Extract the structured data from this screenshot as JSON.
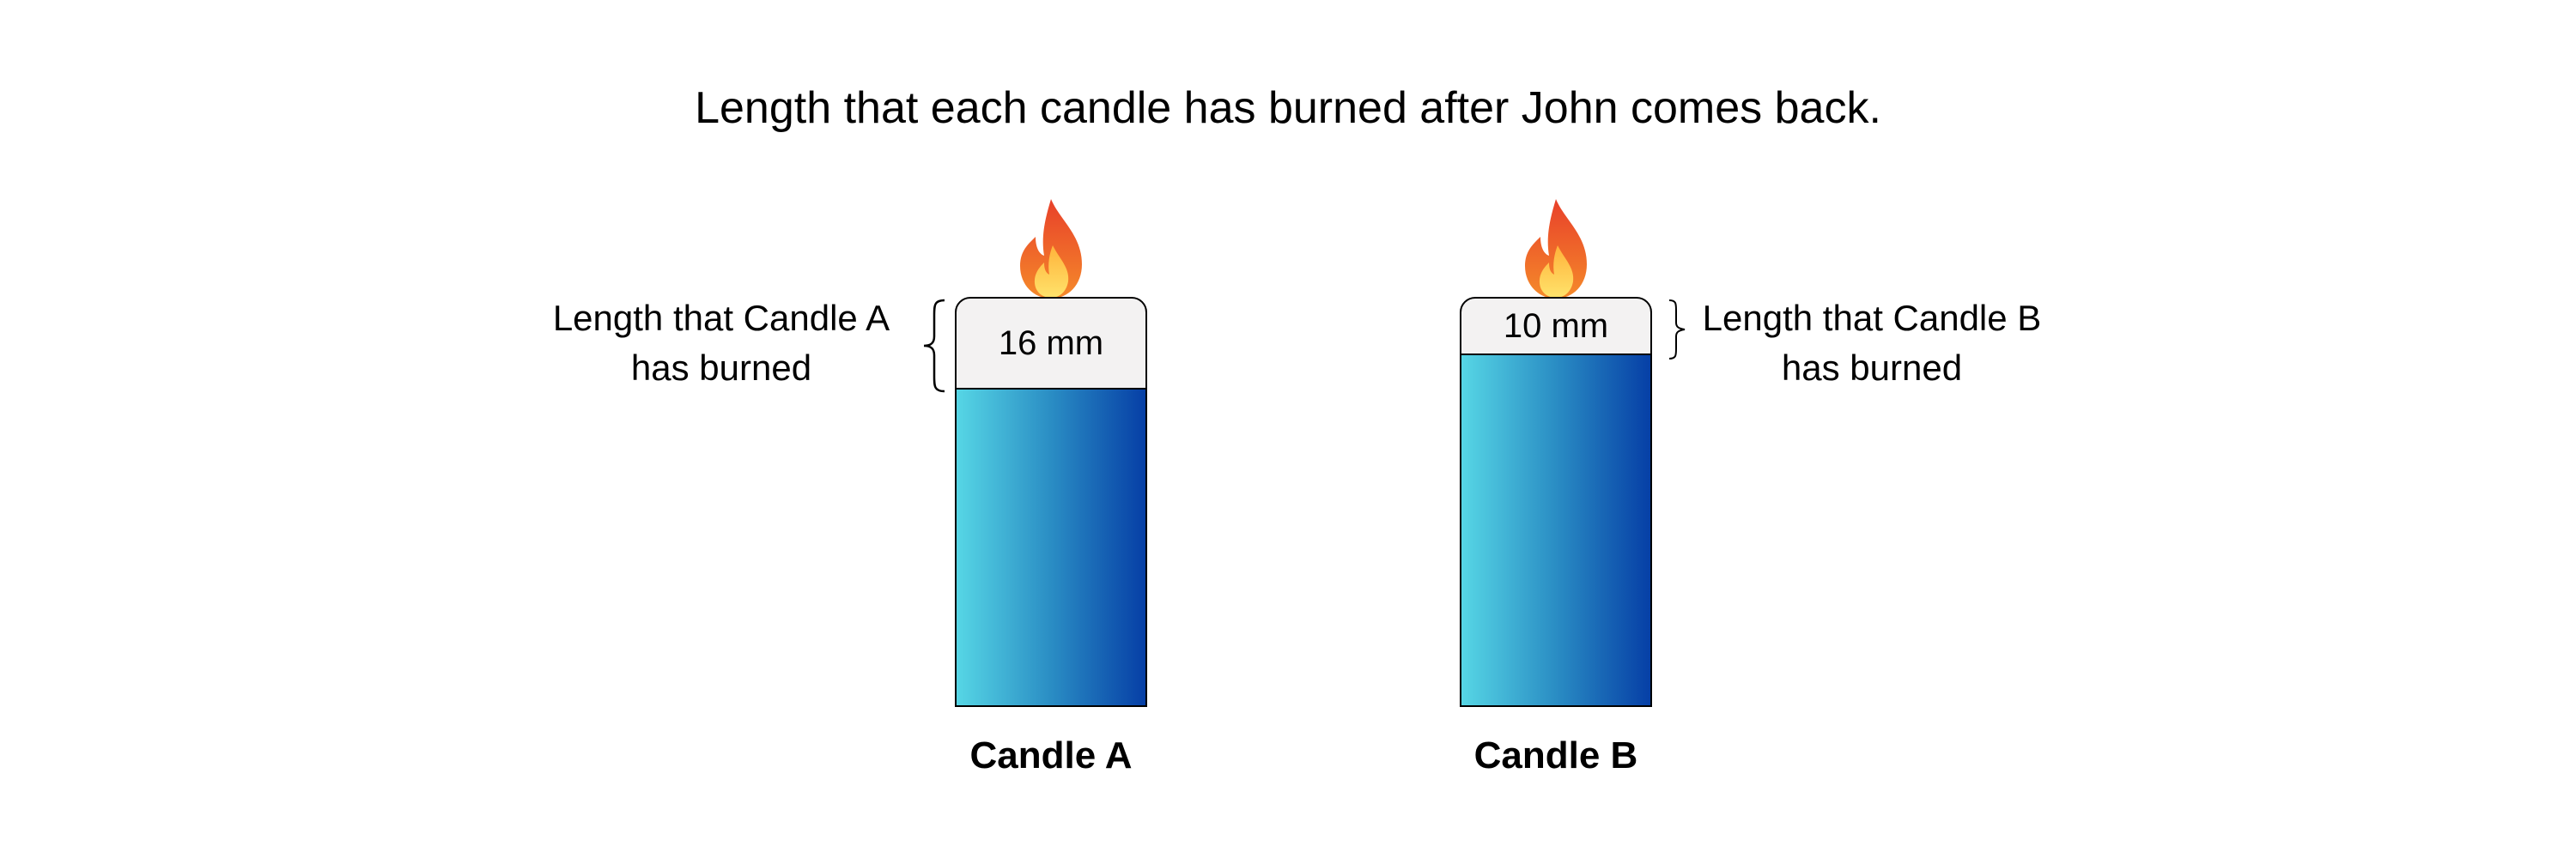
{
  "title": "Length that each candle has burned after John comes back.",
  "candles": [
    {
      "name": "Candle A",
      "burned_label": "16 mm",
      "burned_mm": 16,
      "side_label_line1": "Length that Candle A",
      "side_label_line2": "has burned"
    },
    {
      "name": "Candle B",
      "burned_label": "10 mm",
      "burned_mm": 10,
      "side_label_line1": "Length that Candle B",
      "side_label_line2": "has burned"
    }
  ],
  "colors": {
    "candle_gradient": [
      "#56d6e5",
      "#2a8dc4",
      "#063fa6"
    ],
    "burned_fill": "#f3f2f2",
    "flame": [
      "#e8402a",
      "#f58a2a",
      "#ffd24a"
    ]
  },
  "icons": {
    "flame": "flame-icon",
    "brace": "curly-brace-icon"
  }
}
